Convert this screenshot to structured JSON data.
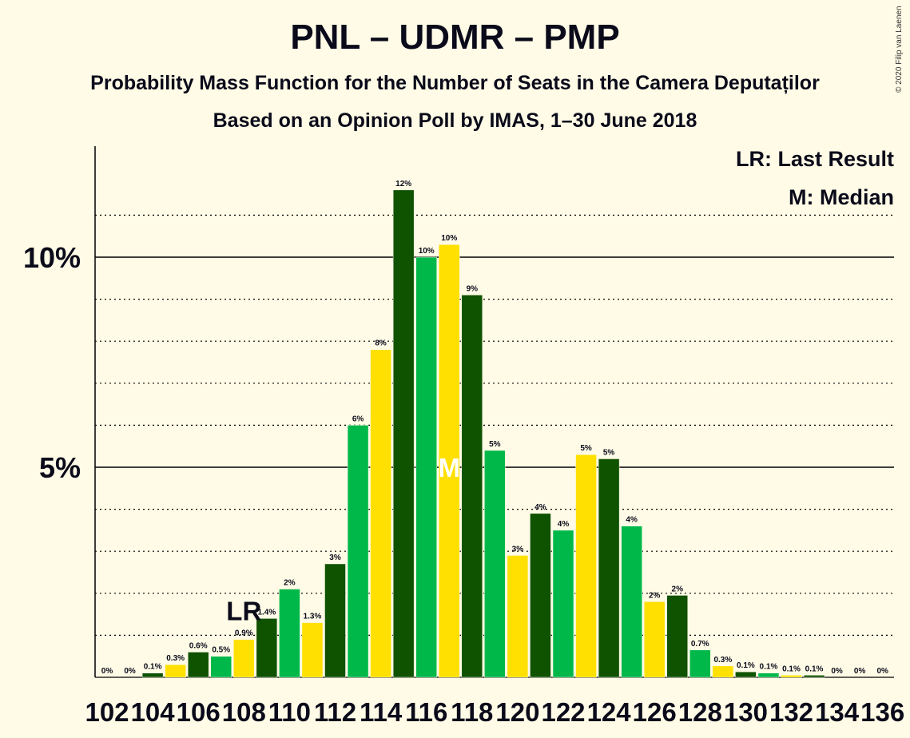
{
  "header": {
    "title": "PNL – UDMR – PMP",
    "subtitle": "Probability Mass Function for the Number of Seats in the Camera Deputaților",
    "subtitle2": "Based on an Opinion Poll by IMAS, 1–30 June 2018",
    "copyright": "© 2020 Filip van Laenen"
  },
  "legend": {
    "last_result": "LR: Last Result",
    "median": "M: Median"
  },
  "colors": {
    "dark_green": "#0f5200",
    "green": "#00b84a",
    "yellow": "#ffe000",
    "background": "#fffbe6"
  },
  "chart_data": {
    "type": "bar",
    "title": "PNL – UDMR – PMP",
    "xlabel": "",
    "ylabel": "",
    "ylim": [
      0,
      12.5
    ],
    "yticks_labeled": [
      "5%",
      "10%"
    ],
    "grid": "dotted every 1%, solid at 5% and 10%",
    "x_tick_labels": [
      "102",
      "104",
      "106",
      "108",
      "110",
      "112",
      "114",
      "116",
      "118",
      "120",
      "122",
      "124",
      "126",
      "128",
      "130",
      "132",
      "134",
      "136"
    ],
    "categories": [
      102,
      103,
      104,
      105,
      106,
      107,
      108,
      109,
      110,
      111,
      112,
      113,
      114,
      115,
      116,
      117,
      118,
      119,
      120,
      121,
      122,
      123,
      124,
      125,
      126,
      127,
      128,
      129,
      130,
      131,
      132,
      133,
      134,
      135,
      136
    ],
    "values": [
      0,
      0,
      0.1,
      0.3,
      0.6,
      0.5,
      0.9,
      1.4,
      2.1,
      1.3,
      2.7,
      6.0,
      7.8,
      11.6,
      10.0,
      10.3,
      9.1,
      5.4,
      2.9,
      3.9,
      3.5,
      5.3,
      5.2,
      3.6,
      1.8,
      1.95,
      0.65,
      0.27,
      0.13,
      0.1,
      0.05,
      0.05,
      0,
      0,
      0
    ],
    "labels": [
      "0%",
      "0%",
      "0.1%",
      "0.3%",
      "0.6%",
      "0.5%",
      "0.9%",
      "1.4%",
      "2%",
      "1.3%",
      "3%",
      "6%",
      "8%",
      "12%",
      "10%",
      "10%",
      "9%",
      "5%",
      "3%",
      "4%",
      "4%",
      "5%",
      "5%",
      "4%",
      "2%",
      "2%",
      "0.7%",
      "0.3%",
      "0.1%",
      "0.1%",
      "0.1%",
      "0.1%",
      "0%",
      "0%",
      "0%"
    ],
    "bar_colors": [
      "green",
      "yellow",
      "dark_green",
      "yellow",
      "dark_green",
      "green",
      "yellow",
      "dark_green",
      "green",
      "yellow",
      "dark_green",
      "green",
      "yellow",
      "dark_green",
      "green",
      "yellow",
      "dark_green",
      "green",
      "yellow",
      "dark_green",
      "green",
      "yellow",
      "dark_green",
      "green",
      "yellow",
      "dark_green",
      "green",
      "yellow",
      "dark_green",
      "green",
      "yellow",
      "dark_green",
      "green",
      "yellow",
      "dark_green"
    ],
    "annotations": [
      {
        "text": "LR",
        "seat": 108
      },
      {
        "text": "M",
        "seat": 117
      }
    ]
  }
}
